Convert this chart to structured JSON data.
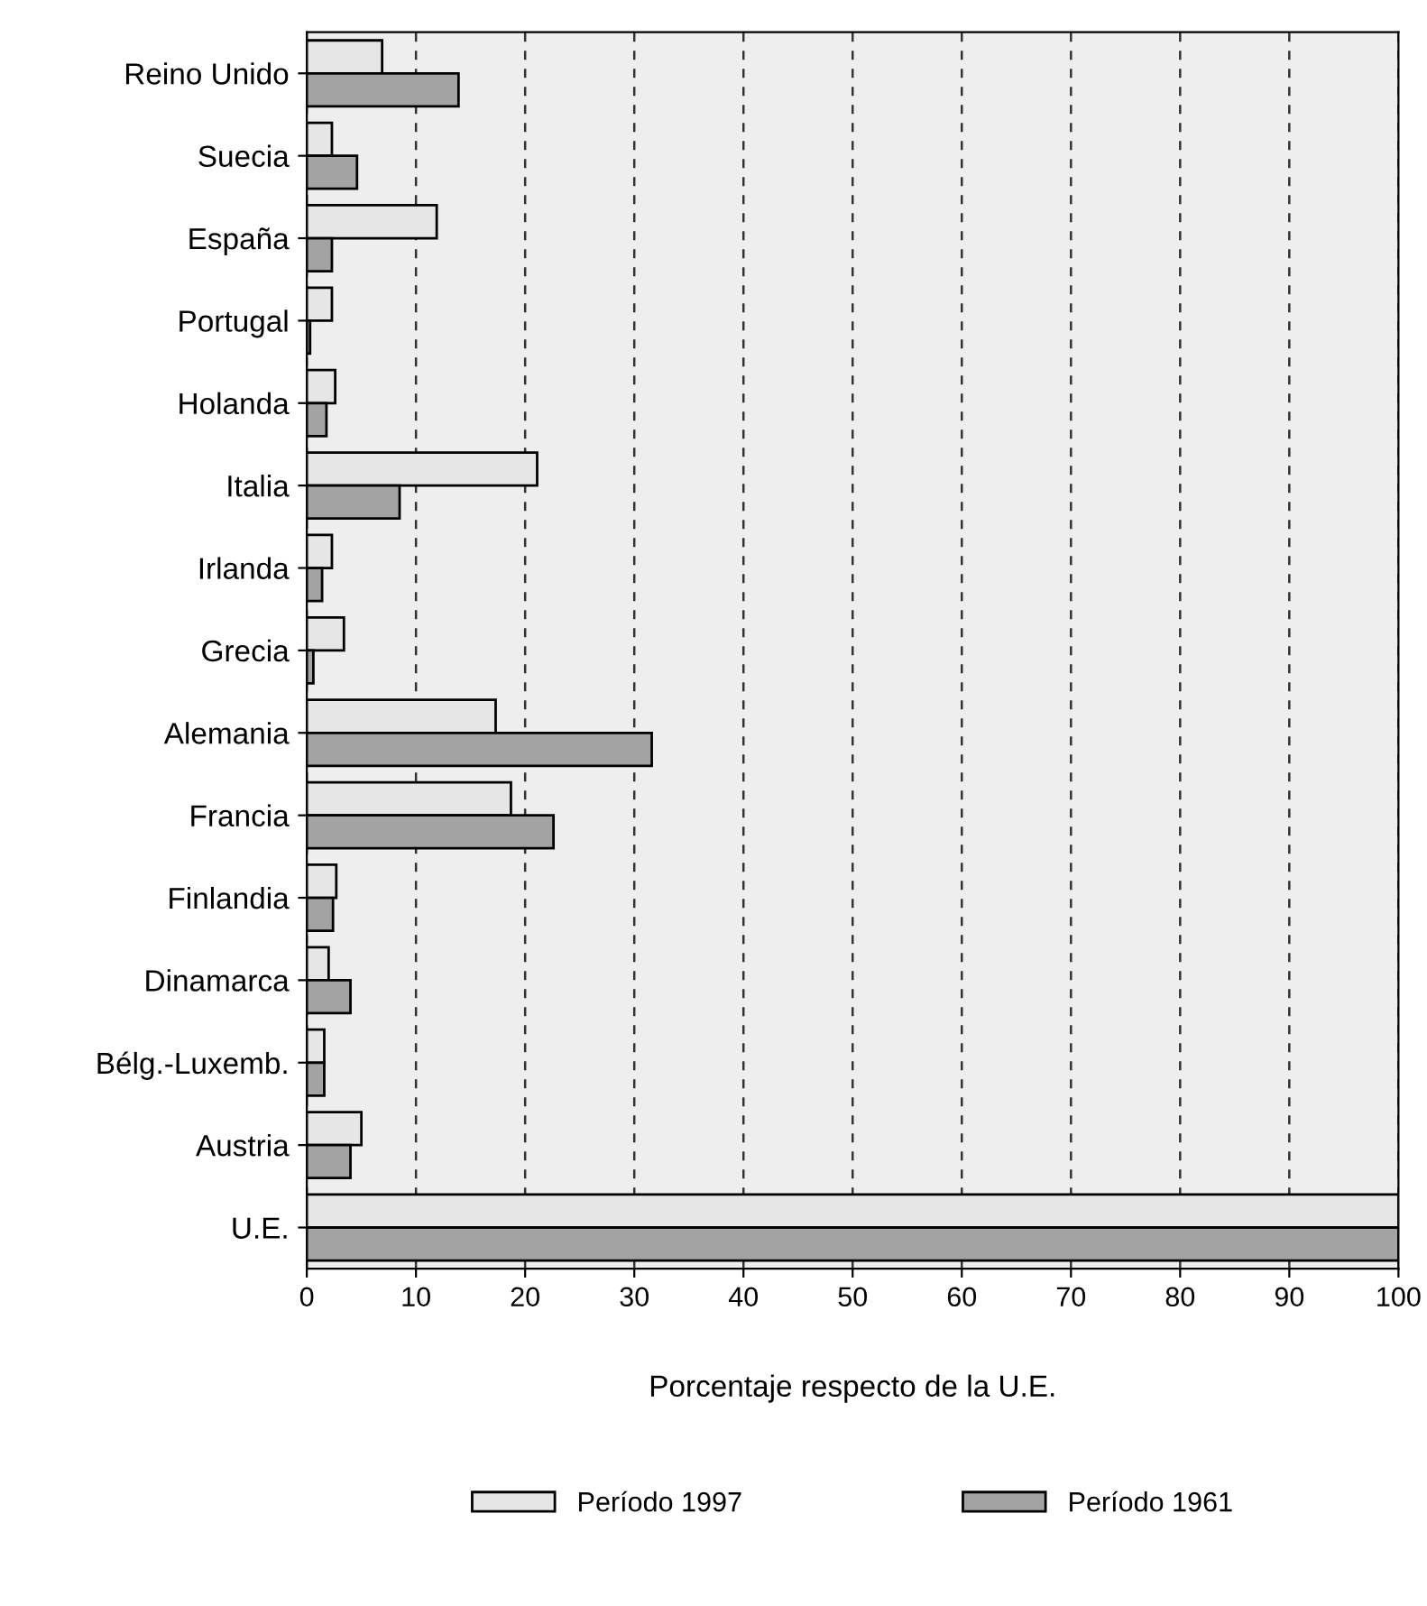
{
  "chart_data": {
    "type": "bar",
    "orientation": "horizontal",
    "xlabel": "Porcentaje respecto de la U.E.",
    "categories": [
      "Reino Unido",
      "Suecia",
      "España",
      "Portugal",
      "Holanda",
      "Italia",
      "Irlanda",
      "Grecia",
      "Alemania",
      "Francia",
      "Finlandia",
      "Dinamarca",
      "Bélg.-Luxemb.",
      "Austria",
      "U.E."
    ],
    "series": [
      {
        "name": "Período 1997",
        "color": "#e6e6e6",
        "values": [
          6.9,
          2.3,
          11.9,
          2.3,
          2.6,
          21.1,
          2.3,
          3.4,
          17.3,
          18.7,
          2.7,
          2.0,
          1.6,
          5.0,
          100
        ]
      },
      {
        "name": "Período 1961",
        "color": "#a3a3a3",
        "values": [
          13.9,
          4.6,
          2.3,
          0.3,
          1.8,
          8.5,
          1.4,
          0.6,
          31.6,
          22.6,
          2.4,
          4.0,
          1.6,
          4.0,
          100
        ]
      }
    ],
    "xlim": [
      0,
      100
    ],
    "xticks": [
      0,
      10,
      20,
      30,
      40,
      50,
      60,
      70,
      80,
      90,
      100
    ],
    "grid": "x",
    "legend": "bottom"
  }
}
